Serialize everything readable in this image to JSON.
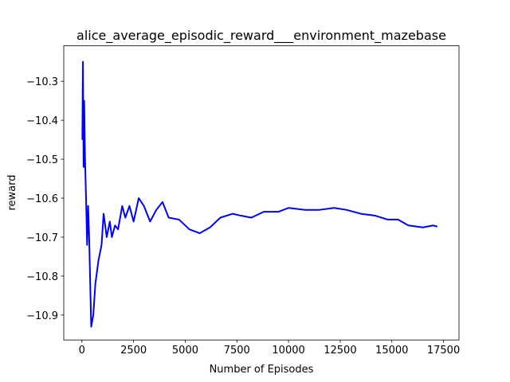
{
  "chart_data": {
    "type": "line",
    "title": "alice_average_episodic_reward___environment_mazebase",
    "xlabel": "Number of Episodes",
    "ylabel": "reward",
    "color": "#0000ff",
    "x": [
      20,
      50,
      80,
      110,
      150,
      200,
      250,
      300,
      350,
      450,
      550,
      650,
      800,
      950,
      1050,
      1200,
      1350,
      1450,
      1600,
      1750,
      1950,
      2100,
      2300,
      2500,
      2750,
      3000,
      3300,
      3600,
      3900,
      4200,
      4700,
      5200,
      5700,
      6200,
      6700,
      7300,
      7700,
      8200,
      8800,
      9500,
      10000,
      10800,
      11500,
      12200,
      12800,
      13500,
      14200,
      14800,
      15300,
      15800,
      16500,
      17000,
      17200
    ],
    "values": [
      -10.45,
      -10.25,
      -10.52,
      -10.35,
      -10.5,
      -10.6,
      -10.72,
      -10.62,
      -10.7,
      -10.93,
      -10.9,
      -10.82,
      -10.76,
      -10.72,
      -10.64,
      -10.7,
      -10.66,
      -10.7,
      -10.67,
      -10.68,
      -10.62,
      -10.65,
      -10.62,
      -10.66,
      -10.6,
      -10.62,
      -10.66,
      -10.63,
      -10.61,
      -10.65,
      -10.655,
      -10.68,
      -10.69,
      -10.675,
      -10.65,
      -10.64,
      -10.645,
      -10.65,
      -10.635,
      -10.635,
      -10.625,
      -10.63,
      -10.63,
      -10.625,
      -10.63,
      -10.64,
      -10.645,
      -10.655,
      -10.655,
      -10.67,
      -10.675,
      -10.67,
      -10.673
    ],
    "xlim": [
      -880,
      18250
    ],
    "ylim": [
      -10.964,
      -10.209
    ],
    "xticks": [
      0,
      2500,
      5000,
      7500,
      10000,
      12500,
      15000,
      17500
    ],
    "yticks": [
      {
        "value": -10.9,
        "label": "−10.9"
      },
      {
        "value": -10.8,
        "label": "−10.8"
      },
      {
        "value": -10.7,
        "label": "−10.7"
      },
      {
        "value": -10.6,
        "label": "−10.6"
      },
      {
        "value": -10.5,
        "label": "−10.5"
      },
      {
        "value": -10.4,
        "label": "−10.4"
      },
      {
        "value": -10.3,
        "label": "−10.3"
      }
    ]
  }
}
